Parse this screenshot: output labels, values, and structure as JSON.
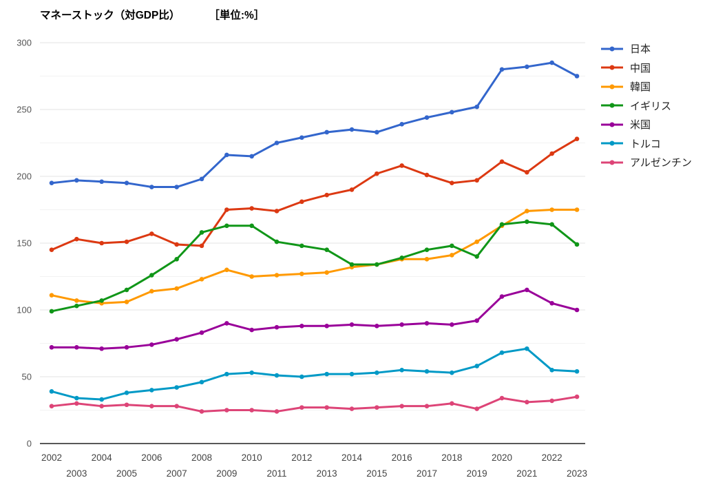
{
  "page": {
    "background": "#ffffff"
  },
  "chart": {
    "title": "マネーストック（対GDP比）",
    "unit_label": "［単位:%］",
    "y_axis": {
      "min": 0,
      "max": 300,
      "major_step": 50,
      "minor_step": 25,
      "tick_labels": [
        "0",
        "50",
        "100",
        "150",
        "200",
        "250",
        "300"
      ]
    },
    "x_axis": {
      "first_year": 2002,
      "last_year": 2023
    },
    "grid_major_color": "#e3e3e3",
    "grid_minor_color": "#f2f2f2",
    "axis_line_color": "#212121"
  },
  "chart_data": {
    "type": "line",
    "title": "マネーストック（対GDP比） ［単位:%］",
    "xlabel": "",
    "ylabel": "",
    "ylim": [
      0,
      300
    ],
    "grid": true,
    "legend_position": "right",
    "x": [
      2002,
      2003,
      2004,
      2005,
      2006,
      2007,
      2008,
      2009,
      2010,
      2011,
      2012,
      2013,
      2014,
      2015,
      2016,
      2017,
      2018,
      2019,
      2020,
      2021,
      2022,
      2023
    ],
    "series": [
      {
        "id": "japan",
        "name": "日本",
        "color": "#3366CC",
        "values": [
          195,
          197,
          196,
          195,
          192,
          192,
          198,
          216,
          215,
          225,
          229,
          233,
          235,
          233,
          239,
          244,
          248,
          252,
          280,
          282,
          285,
          275
        ]
      },
      {
        "id": "china",
        "name": "中国",
        "color": "#DC3912",
        "values": [
          145,
          153,
          150,
          151,
          157,
          149,
          148,
          175,
          176,
          174,
          181,
          186,
          190,
          202,
          208,
          201,
          195,
          197,
          211,
          203,
          217,
          228
        ]
      },
      {
        "id": "korea",
        "name": "韓国",
        "color": "#FF9900",
        "values": [
          111,
          107,
          105,
          106,
          114,
          116,
          123,
          130,
          125,
          126,
          127,
          128,
          132,
          134,
          138,
          138,
          141,
          151,
          163,
          174,
          175,
          175
        ]
      },
      {
        "id": "uk",
        "name": "イギリス",
        "color": "#109618",
        "values": [
          99,
          103,
          107,
          115,
          126,
          138,
          158,
          163,
          163,
          151,
          148,
          145,
          134,
          134,
          139,
          145,
          148,
          140,
          164,
          166,
          164,
          149
        ]
      },
      {
        "id": "usa",
        "name": "米国",
        "color": "#990099",
        "values": [
          72,
          72,
          71,
          72,
          74,
          78,
          83,
          90,
          85,
          87,
          88,
          88,
          89,
          88,
          89,
          90,
          89,
          92,
          110,
          115,
          105,
          100
        ]
      },
      {
        "id": "turkey",
        "name": "トルコ",
        "color": "#0099C6",
        "values": [
          39,
          34,
          33,
          38,
          40,
          42,
          46,
          52,
          53,
          51,
          50,
          52,
          52,
          53,
          55,
          54,
          53,
          58,
          68,
          71,
          55,
          54
        ]
      },
      {
        "id": "argentina",
        "name": "アルゼンチン",
        "color": "#DD4477",
        "values": [
          28,
          30,
          28,
          29,
          28,
          28,
          24,
          25,
          25,
          24,
          27,
          27,
          26,
          27,
          28,
          28,
          30,
          26,
          34,
          31,
          32,
          35
        ]
      }
    ]
  }
}
